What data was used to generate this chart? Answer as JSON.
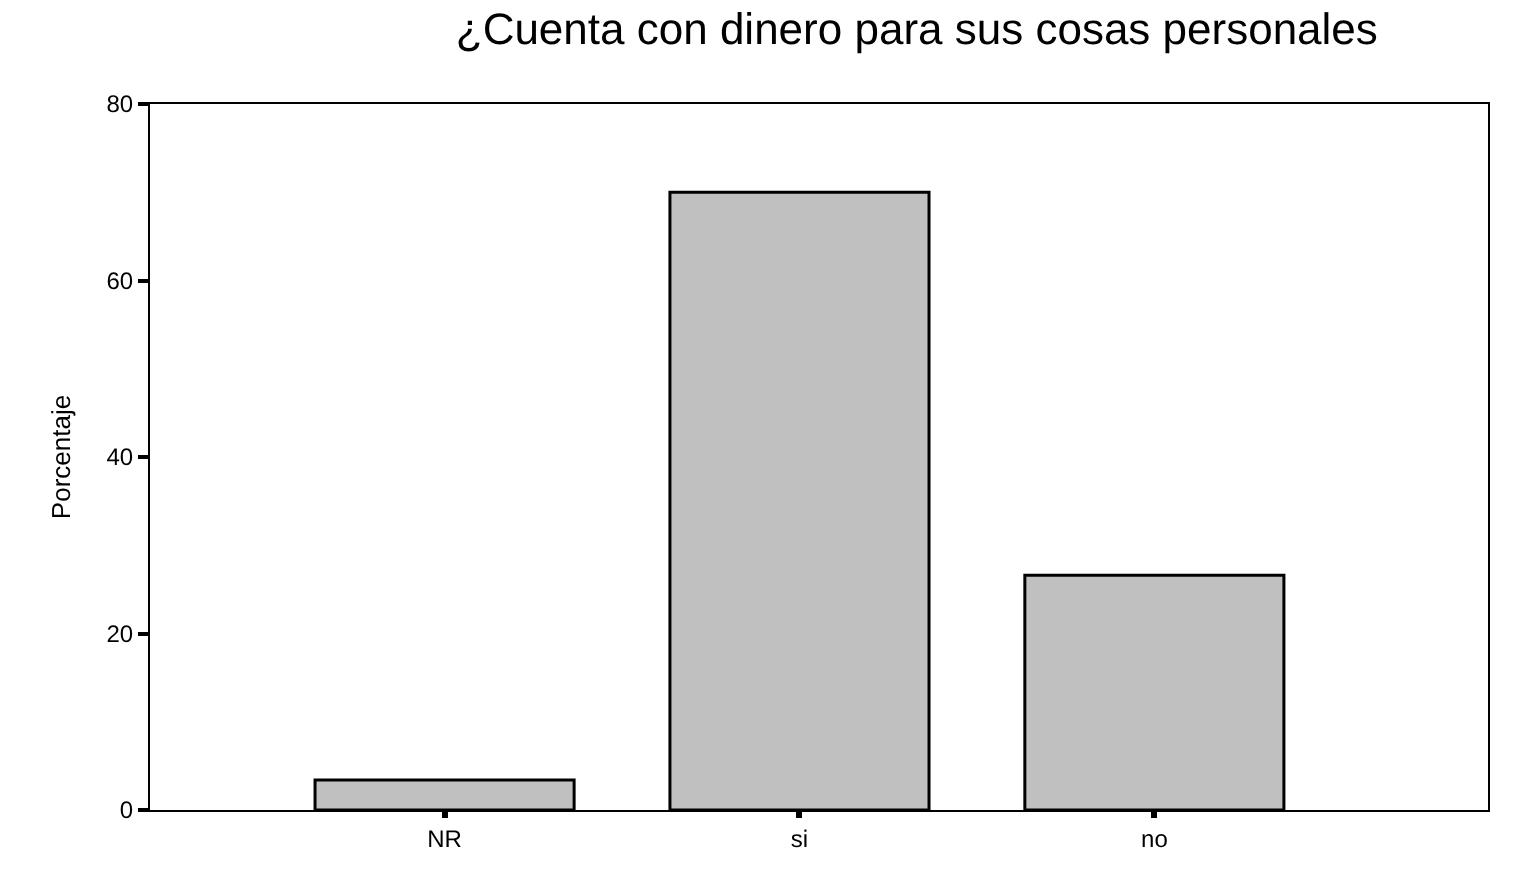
{
  "chart_data": {
    "type": "bar",
    "title": "¿Cuenta con dinero para sus cosas personales",
    "ylabel": "Porcentaje",
    "categories": [
      "NR",
      "si",
      "no"
    ],
    "values": [
      3.4,
      70.0,
      26.6
    ],
    "color": "#c0c0c0",
    "ylim": [
      0,
      80
    ],
    "yticks": [
      0,
      20,
      40,
      60,
      80
    ]
  }
}
